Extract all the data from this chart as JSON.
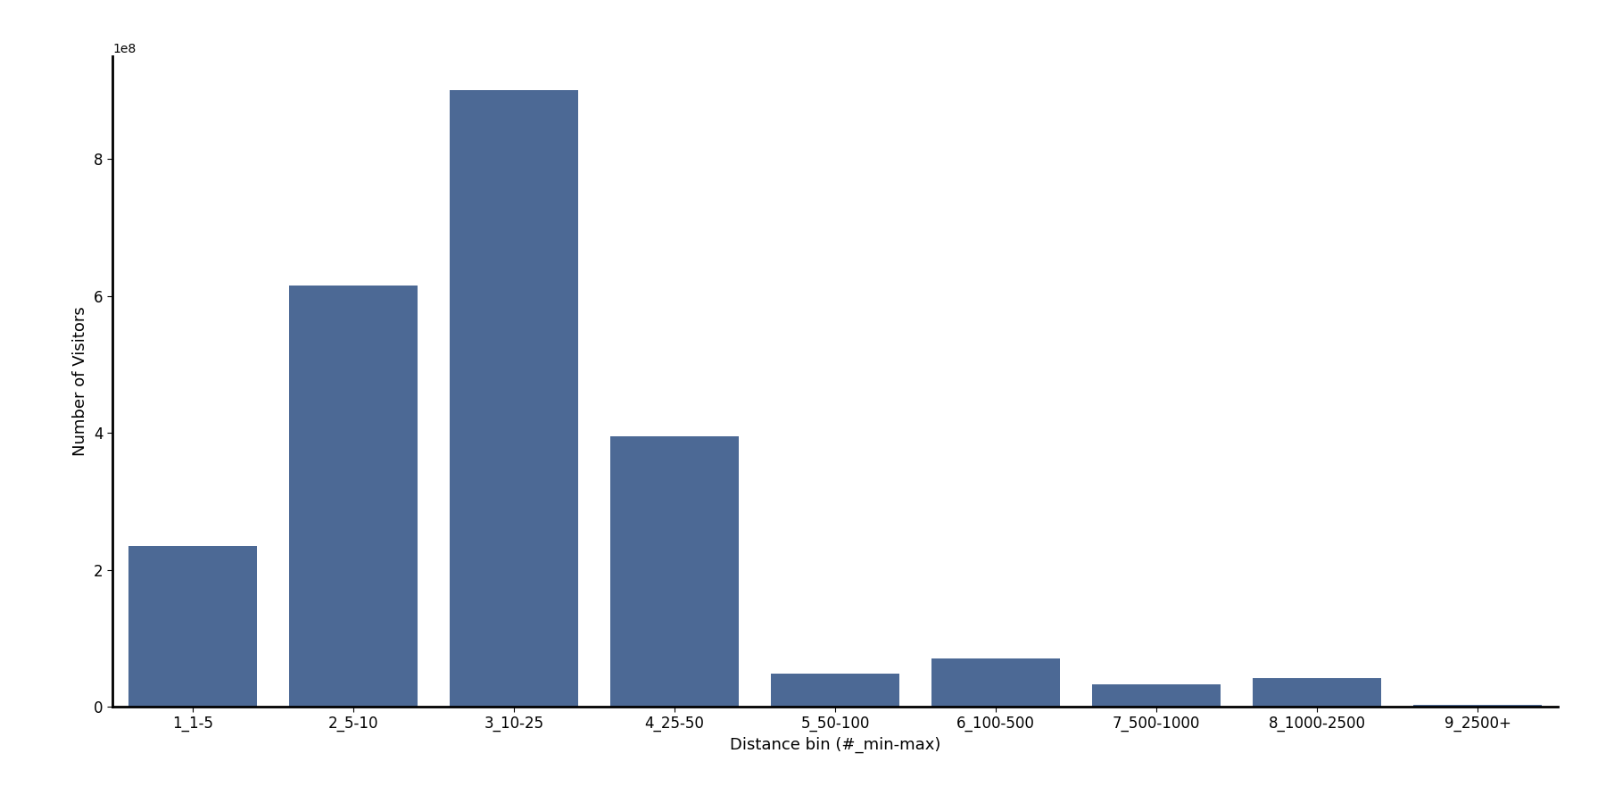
{
  "categories": [
    "1_1-5",
    "2_5-10",
    "3_10-25",
    "4_25-50",
    "5_50-100",
    "6_100-500",
    "7_500-1000",
    "8_1000-2500",
    "9_2500+"
  ],
  "values": [
    235000000.0,
    615000000.0,
    900000000.0,
    395000000.0,
    48000000.0,
    70000000.0,
    33000000.0,
    42000000.0,
    2000000.0
  ],
  "bar_color": "#4c6995",
  "xlabel": "Distance bin (#_min-max)",
  "ylabel": "Number of Visitors",
  "ylim": [
    0,
    950000000.0
  ],
  "background_color": "#ffffff",
  "figsize": [
    18.0,
    9.0
  ],
  "dpi": 100,
  "bar_width": 0.8,
  "tick_fontsize": 12,
  "label_fontsize": 13
}
